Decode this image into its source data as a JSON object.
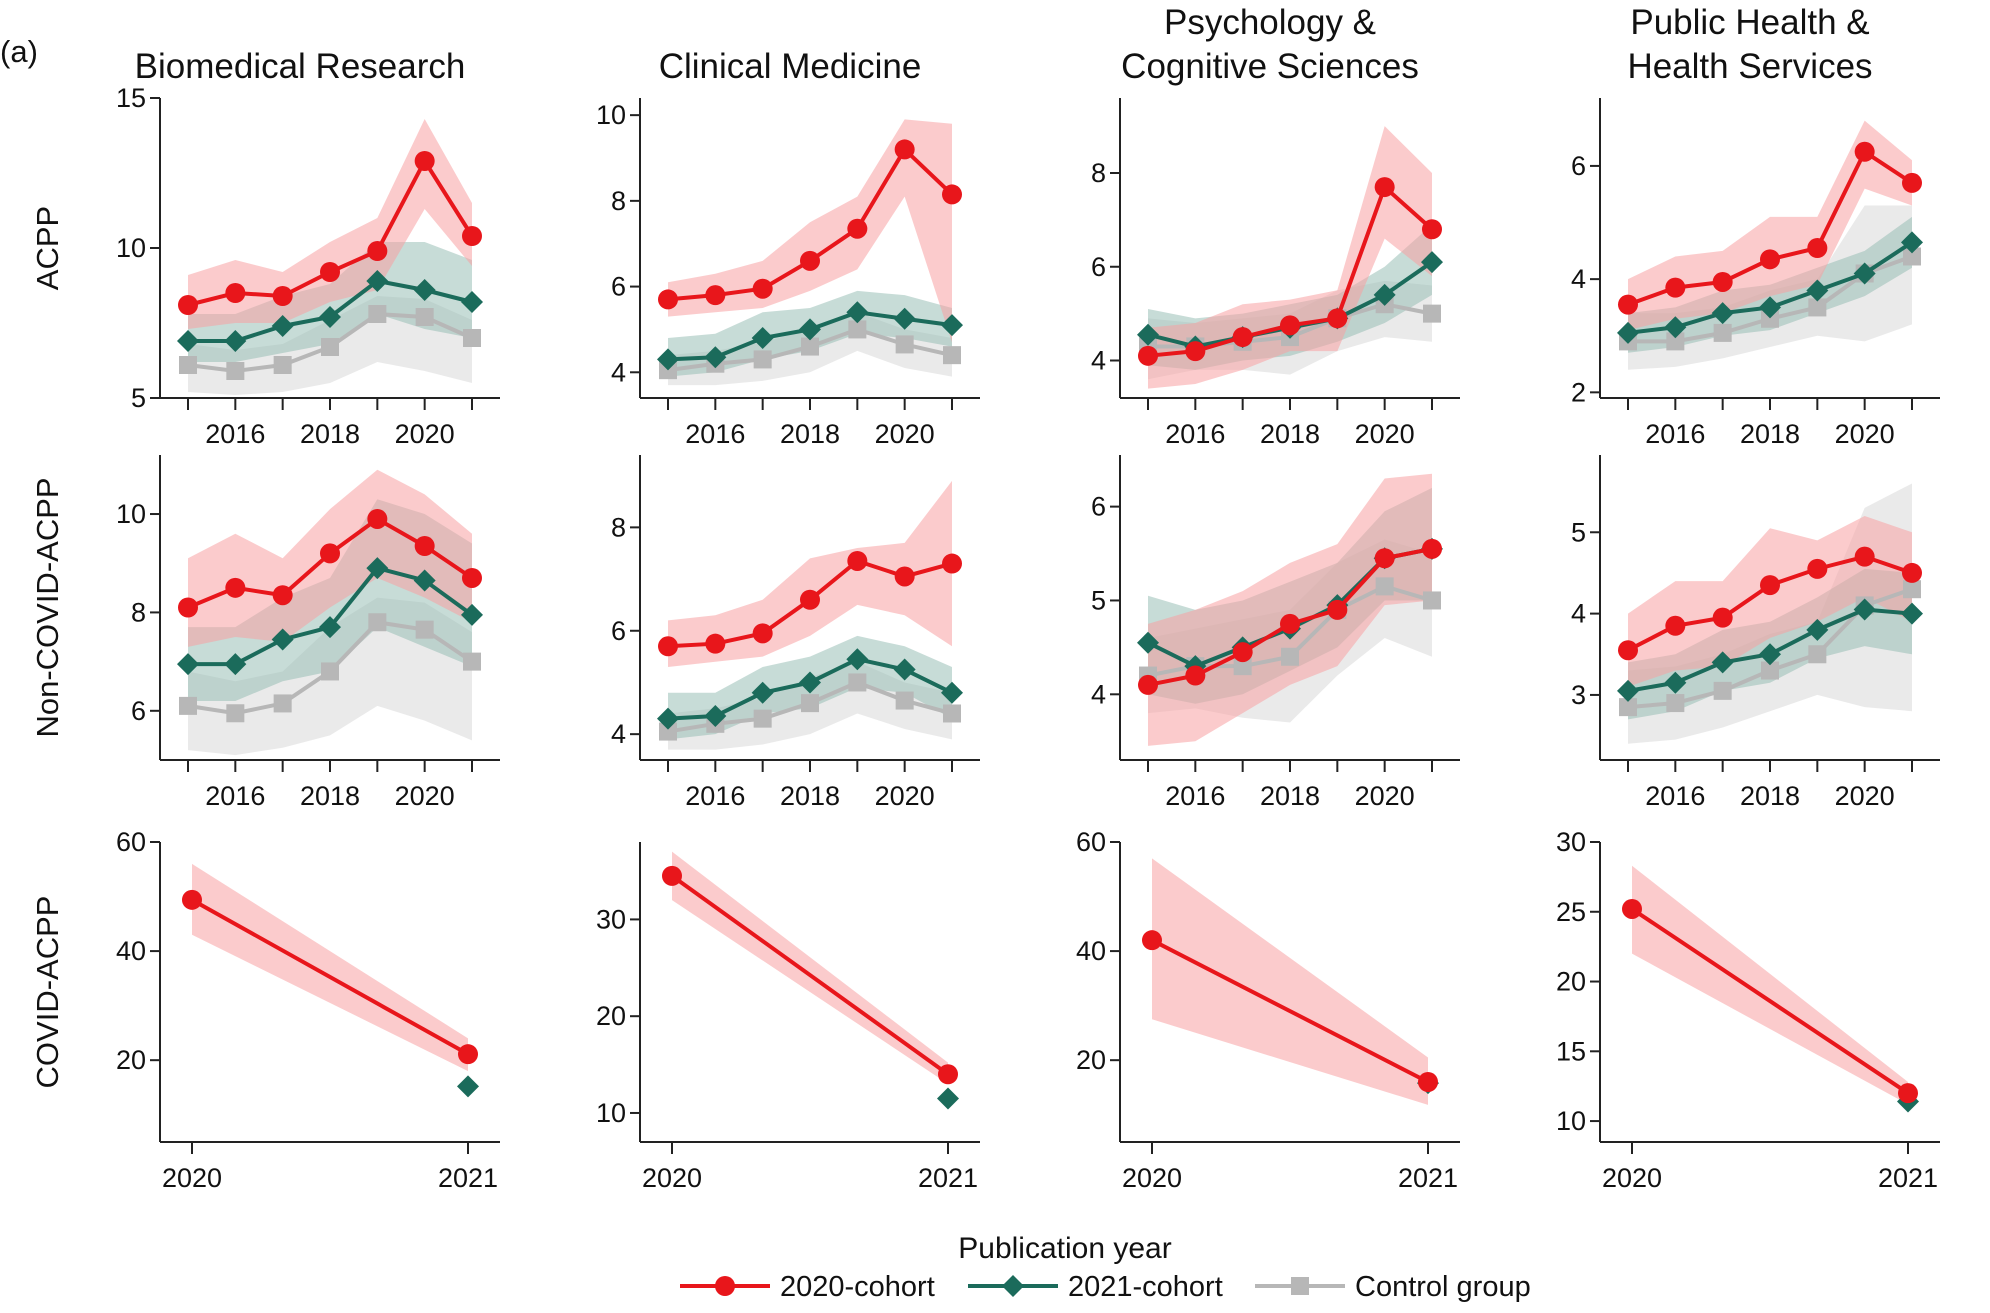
{
  "panel_label": "(a)",
  "x_axis_label": "Publication year",
  "colors": {
    "c2020": "#e8161b",
    "c2021": "#1b6b5b",
    "control": "#b7b7b7"
  },
  "legend": [
    {
      "label": "2020-cohort",
      "marker": "circle",
      "color": "#e8161b"
    },
    {
      "label": "2021-cohort",
      "marker": "diamond",
      "color": "#1b6b5b"
    },
    {
      "label": "Control group",
      "marker": "square",
      "color": "#b7b7b7"
    }
  ],
  "columns": [
    {
      "title_lines": [
        "Biomedical Research"
      ]
    },
    {
      "title_lines": [
        "Clinical Medicine"
      ]
    },
    {
      "title_lines": [
        "Psychology &",
        "Cognitive Sciences"
      ]
    },
    {
      "title_lines": [
        "Public Health &",
        "Health Services"
      ]
    }
  ],
  "rows": [
    {
      "label": "ACPP"
    },
    {
      "label": "Non-COVID-ACPP"
    },
    {
      "label": "COVID-ACPP"
    }
  ],
  "chart_data": [
    {
      "type": "line",
      "row": 0,
      "col": 0,
      "x": [
        2015,
        2016,
        2017,
        2018,
        2019,
        2020,
        2021
      ],
      "xticks": [
        2016,
        2018,
        2020
      ],
      "ylim": [
        5,
        15
      ],
      "yticks": [
        5,
        10,
        15
      ],
      "series": [
        {
          "name": "2020-cohort",
          "values": [
            8.1,
            8.5,
            8.4,
            9.2,
            9.9,
            12.9,
            10.4
          ],
          "lower": [
            7.3,
            7.5,
            7.5,
            8.2,
            8.6,
            11.3,
            9.4
          ],
          "upper": [
            9.1,
            9.6,
            9.2,
            10.2,
            11.0,
            14.3,
            11.5
          ]
        },
        {
          "name": "2021-cohort",
          "values": [
            6.9,
            6.9,
            7.4,
            7.7,
            8.9,
            8.6,
            8.2
          ],
          "lower": [
            6.2,
            6.2,
            6.5,
            6.8,
            7.8,
            7.3,
            7.0
          ],
          "upper": [
            7.8,
            7.8,
            8.4,
            8.8,
            10.2,
            10.2,
            9.6
          ]
        },
        {
          "name": "Control group",
          "values": [
            6.1,
            5.9,
            6.1,
            6.7,
            7.8,
            7.7,
            7.0
          ],
          "lower": [
            5.2,
            5.1,
            5.2,
            5.5,
            6.2,
            5.9,
            5.5
          ],
          "upper": [
            6.8,
            6.6,
            6.8,
            7.6,
            8.4,
            8.3,
            7.6
          ]
        }
      ]
    },
    {
      "type": "line",
      "row": 0,
      "col": 1,
      "x": [
        2015,
        2016,
        2017,
        2018,
        2019,
        2020,
        2021
      ],
      "xticks": [
        2016,
        2018,
        2020
      ],
      "ylim": [
        3.4,
        10.4
      ],
      "yticks": [
        4,
        6,
        8,
        10
      ],
      "series": [
        {
          "name": "2020-cohort",
          "values": [
            5.7,
            5.8,
            5.95,
            6.6,
            7.35,
            9.2,
            8.15
          ],
          "lower": [
            5.3,
            5.4,
            5.5,
            5.9,
            6.4,
            8.1,
            4.7
          ],
          "upper": [
            6.1,
            6.3,
            6.6,
            7.5,
            8.1,
            9.9,
            9.8
          ]
        },
        {
          "name": "2021-cohort",
          "values": [
            4.3,
            4.35,
            4.8,
            5.0,
            5.4,
            5.25,
            5.1
          ],
          "lower": [
            3.9,
            4.0,
            4.3,
            4.5,
            4.9,
            4.8,
            4.6
          ],
          "upper": [
            4.8,
            4.9,
            5.4,
            5.5,
            5.9,
            5.8,
            5.5
          ]
        },
        {
          "name": "Control group",
          "values": [
            4.05,
            4.2,
            4.3,
            4.6,
            5.0,
            4.65,
            4.4
          ],
          "lower": [
            3.7,
            3.7,
            3.8,
            4.0,
            4.5,
            4.1,
            3.9
          ],
          "upper": [
            4.4,
            4.5,
            4.7,
            5.0,
            5.4,
            5.0,
            4.8
          ]
        }
      ]
    },
    {
      "type": "line",
      "row": 0,
      "col": 2,
      "x": [
        2015,
        2016,
        2017,
        2018,
        2019,
        2020,
        2021
      ],
      "xticks": [
        2016,
        2018,
        2020
      ],
      "ylim": [
        3.2,
        9.6
      ],
      "yticks": [
        4,
        6,
        8
      ],
      "series": [
        {
          "name": "2020-cohort",
          "values": [
            4.1,
            4.2,
            4.5,
            4.75,
            4.9,
            7.7,
            6.8
          ],
          "lower": [
            3.4,
            3.5,
            3.8,
            4.2,
            4.2,
            6.6,
            5.8
          ],
          "upper": [
            4.7,
            4.8,
            5.2,
            5.3,
            5.5,
            9.0,
            8.0
          ]
        },
        {
          "name": "2021-cohort",
          "values": [
            4.55,
            4.3,
            4.5,
            4.7,
            4.9,
            5.4,
            6.1
          ],
          "lower": [
            3.9,
            3.8,
            4.0,
            4.1,
            4.4,
            4.8,
            5.4
          ],
          "upper": [
            5.1,
            4.9,
            5.0,
            5.2,
            5.4,
            6.0,
            6.9
          ]
        },
        {
          "name": "Control group",
          "values": [
            4.3,
            4.3,
            4.4,
            4.5,
            4.9,
            5.2,
            5.0
          ],
          "lower": [
            3.6,
            3.8,
            3.8,
            3.7,
            4.2,
            4.5,
            4.4
          ],
          "upper": [
            4.9,
            4.8,
            4.9,
            5.0,
            5.5,
            5.7,
            5.6
          ]
        }
      ]
    },
    {
      "type": "line",
      "row": 0,
      "col": 3,
      "x": [
        2015,
        2016,
        2017,
        2018,
        2019,
        2020,
        2021
      ],
      "xticks": [
        2016,
        2018,
        2020
      ],
      "ylim": [
        1.9,
        7.2
      ],
      "yticks": [
        2,
        4,
        6
      ],
      "series": [
        {
          "name": "2020-cohort",
          "values": [
            3.55,
            3.85,
            3.95,
            4.35,
            4.55,
            6.25,
            5.7
          ],
          "lower": [
            3.1,
            3.3,
            3.4,
            3.7,
            3.9,
            5.6,
            5.3
          ],
          "upper": [
            4.0,
            4.4,
            4.5,
            5.1,
            5.1,
            6.8,
            6.1
          ]
        },
        {
          "name": "2021-cohort",
          "values": [
            3.05,
            3.15,
            3.4,
            3.5,
            3.8,
            4.1,
            4.65
          ],
          "lower": [
            2.7,
            2.8,
            3.0,
            3.1,
            3.4,
            3.7,
            4.2
          ],
          "upper": [
            3.4,
            3.5,
            3.8,
            3.9,
            4.2,
            4.5,
            5.1
          ]
        },
        {
          "name": "Control group",
          "values": [
            2.9,
            2.9,
            3.05,
            3.3,
            3.5,
            4.1,
            4.4
          ],
          "lower": [
            2.4,
            2.45,
            2.6,
            2.8,
            3.0,
            2.9,
            3.2
          ],
          "upper": [
            3.4,
            3.4,
            3.5,
            3.8,
            4.0,
            5.3,
            5.3
          ]
        }
      ]
    },
    {
      "type": "line",
      "row": 1,
      "col": 0,
      "x": [
        2015,
        2016,
        2017,
        2018,
        2019,
        2020,
        2021
      ],
      "xticks": [
        2016,
        2018,
        2020
      ],
      "ylim": [
        5,
        11.2
      ],
      "yticks": [
        6,
        8,
        10
      ],
      "series": [
        {
          "name": "2020-cohort",
          "values": [
            8.1,
            8.5,
            8.35,
            9.2,
            9.9,
            9.35,
            8.7
          ],
          "lower": [
            7.3,
            7.5,
            7.4,
            8.1,
            8.7,
            8.3,
            7.8
          ],
          "upper": [
            9.1,
            9.6,
            9.1,
            10.1,
            10.9,
            10.4,
            9.6
          ]
        },
        {
          "name": "2021-cohort",
          "values": [
            6.95,
            6.95,
            7.45,
            7.7,
            8.9,
            8.65,
            7.95
          ],
          "lower": [
            6.2,
            6.2,
            6.6,
            6.8,
            7.7,
            7.3,
            6.9
          ],
          "upper": [
            7.7,
            7.7,
            8.3,
            8.7,
            10.3,
            10.0,
            9.4
          ]
        },
        {
          "name": "Control group",
          "values": [
            6.1,
            5.95,
            6.15,
            6.8,
            7.8,
            7.65,
            7.0
          ],
          "lower": [
            5.2,
            5.1,
            5.25,
            5.5,
            6.1,
            5.8,
            5.4
          ],
          "upper": [
            6.8,
            6.6,
            6.8,
            7.7,
            8.3,
            8.2,
            7.6
          ]
        }
      ]
    },
    {
      "type": "line",
      "row": 1,
      "col": 1,
      "x": [
        2015,
        2016,
        2017,
        2018,
        2019,
        2020,
        2021
      ],
      "xticks": [
        2016,
        2018,
        2020
      ],
      "ylim": [
        3.5,
        9.4
      ],
      "yticks": [
        4,
        6,
        8
      ],
      "series": [
        {
          "name": "2020-cohort",
          "values": [
            5.7,
            5.75,
            5.95,
            6.6,
            7.35,
            7.05,
            7.3
          ],
          "lower": [
            5.3,
            5.4,
            5.5,
            5.9,
            6.5,
            6.3,
            5.7
          ],
          "upper": [
            6.2,
            6.3,
            6.6,
            7.4,
            7.6,
            7.7,
            8.9
          ]
        },
        {
          "name": "2021-cohort",
          "values": [
            4.3,
            4.35,
            4.8,
            5.0,
            5.45,
            5.25,
            4.8
          ],
          "lower": [
            3.9,
            4.0,
            4.4,
            4.5,
            4.9,
            4.8,
            4.3
          ],
          "upper": [
            4.8,
            4.8,
            5.3,
            5.5,
            5.9,
            5.7,
            5.3
          ]
        },
        {
          "name": "Control group",
          "values": [
            4.05,
            4.2,
            4.3,
            4.6,
            5.0,
            4.65,
            4.4
          ],
          "lower": [
            3.7,
            3.7,
            3.8,
            4.0,
            4.4,
            4.1,
            3.9
          ],
          "upper": [
            4.4,
            4.5,
            4.7,
            5.1,
            5.4,
            5.0,
            4.8
          ]
        }
      ]
    },
    {
      "type": "line",
      "row": 1,
      "col": 2,
      "x": [
        2015,
        2016,
        2017,
        2018,
        2019,
        2020,
        2021
      ],
      "xticks": [
        2016,
        2018,
        2020
      ],
      "ylim": [
        3.3,
        6.55
      ],
      "yticks": [
        4,
        5,
        6
      ],
      "series": [
        {
          "name": "2020-cohort",
          "values": [
            4.1,
            4.2,
            4.45,
            4.75,
            4.9,
            5.45,
            5.55
          ],
          "lower": [
            3.45,
            3.5,
            3.8,
            4.1,
            4.3,
            4.95,
            5.0
          ],
          "upper": [
            4.75,
            4.9,
            5.1,
            5.4,
            5.6,
            6.3,
            6.35
          ]
        },
        {
          "name": "2021-cohort",
          "values": [
            4.55,
            4.3,
            4.5,
            4.7,
            4.95,
            5.45,
            5.55
          ],
          "lower": [
            4.0,
            3.9,
            4.0,
            4.25,
            4.5,
            5.0,
            5.0
          ],
          "upper": [
            5.05,
            4.9,
            5.0,
            5.2,
            5.4,
            5.95,
            6.2
          ]
        },
        {
          "name": "Control group",
          "values": [
            4.2,
            4.3,
            4.3,
            4.4,
            4.9,
            5.15,
            5.0
          ],
          "lower": [
            3.8,
            3.85,
            3.75,
            3.7,
            4.2,
            4.6,
            4.4
          ],
          "upper": [
            4.6,
            4.7,
            4.8,
            4.9,
            5.4,
            5.65,
            5.5
          ]
        }
      ]
    },
    {
      "type": "line",
      "row": 1,
      "col": 3,
      "x": [
        2015,
        2016,
        2017,
        2018,
        2019,
        2020,
        2021
      ],
      "xticks": [
        2016,
        2018,
        2020
      ],
      "ylim": [
        2.2,
        5.95
      ],
      "yticks": [
        3,
        4,
        5
      ],
      "series": [
        {
          "name": "2020-cohort",
          "values": [
            3.55,
            3.85,
            3.95,
            4.35,
            4.55,
            4.7,
            4.5
          ],
          "lower": [
            3.1,
            3.3,
            3.35,
            3.7,
            3.9,
            4.2,
            3.9
          ],
          "upper": [
            4.0,
            4.4,
            4.4,
            5.05,
            4.9,
            5.2,
            5.0
          ]
        },
        {
          "name": "2021-cohort",
          "values": [
            3.05,
            3.15,
            3.4,
            3.5,
            3.8,
            4.05,
            4.0
          ],
          "lower": [
            2.7,
            2.8,
            3.05,
            3.15,
            3.45,
            3.6,
            3.5
          ],
          "upper": [
            3.4,
            3.5,
            3.8,
            3.9,
            4.2,
            4.55,
            4.5
          ]
        },
        {
          "name": "Control group",
          "values": [
            2.85,
            2.9,
            3.05,
            3.3,
            3.5,
            4.1,
            4.3
          ],
          "lower": [
            2.4,
            2.45,
            2.6,
            2.8,
            3.0,
            2.85,
            2.8
          ],
          "upper": [
            3.3,
            3.35,
            3.5,
            3.75,
            3.9,
            5.3,
            5.6
          ]
        }
      ]
    },
    {
      "type": "line",
      "row": 2,
      "col": 0,
      "x": [
        2020,
        2021
      ],
      "xticks": [
        2020,
        2021
      ],
      "ylim": [
        5,
        60
      ],
      "yticks": [
        20,
        40,
        60
      ],
      "series": [
        {
          "name": "2020-cohort",
          "values": [
            49.4,
            21.1
          ],
          "lower": [
            43,
            18
          ],
          "upper": [
            56,
            24
          ]
        },
        {
          "name": "2021-cohort",
          "values": [
            null,
            15.2
          ]
        }
      ]
    },
    {
      "type": "line",
      "row": 2,
      "col": 1,
      "x": [
        2020,
        2021
      ],
      "xticks": [
        2020,
        2021
      ],
      "ylim": [
        7,
        38
      ],
      "yticks": [
        10,
        20,
        30
      ],
      "series": [
        {
          "name": "2020-cohort",
          "values": [
            34.5,
            14.0
          ],
          "lower": [
            32.0,
            13.0
          ],
          "upper": [
            37.0,
            15.2
          ]
        },
        {
          "name": "2021-cohort",
          "values": [
            null,
            11.5
          ]
        }
      ]
    },
    {
      "type": "line",
      "row": 2,
      "col": 2,
      "x": [
        2020,
        2021
      ],
      "xticks": [
        2020,
        2021
      ],
      "ylim": [
        5,
        60
      ],
      "yticks": [
        20,
        40,
        60
      ],
      "series": [
        {
          "name": "2020-cohort",
          "values": [
            42.0,
            16.0
          ],
          "lower": [
            27.5,
            11.8
          ],
          "upper": [
            57.0,
            20.5
          ]
        },
        {
          "name": "2021-cohort",
          "values": [
            null,
            15.8
          ]
        }
      ]
    },
    {
      "type": "line",
      "row": 2,
      "col": 3,
      "x": [
        2020,
        2021
      ],
      "xticks": [
        2020,
        2021
      ],
      "ylim": [
        8.5,
        30
      ],
      "yticks": [
        10,
        15,
        20,
        25,
        30
      ],
      "series": [
        {
          "name": "2020-cohort",
          "values": [
            25.2,
            12.0
          ],
          "lower": [
            22.0,
            11.2
          ],
          "upper": [
            28.3,
            12.8
          ]
        },
        {
          "name": "2021-cohort",
          "values": [
            null,
            11.4
          ]
        }
      ]
    }
  ]
}
